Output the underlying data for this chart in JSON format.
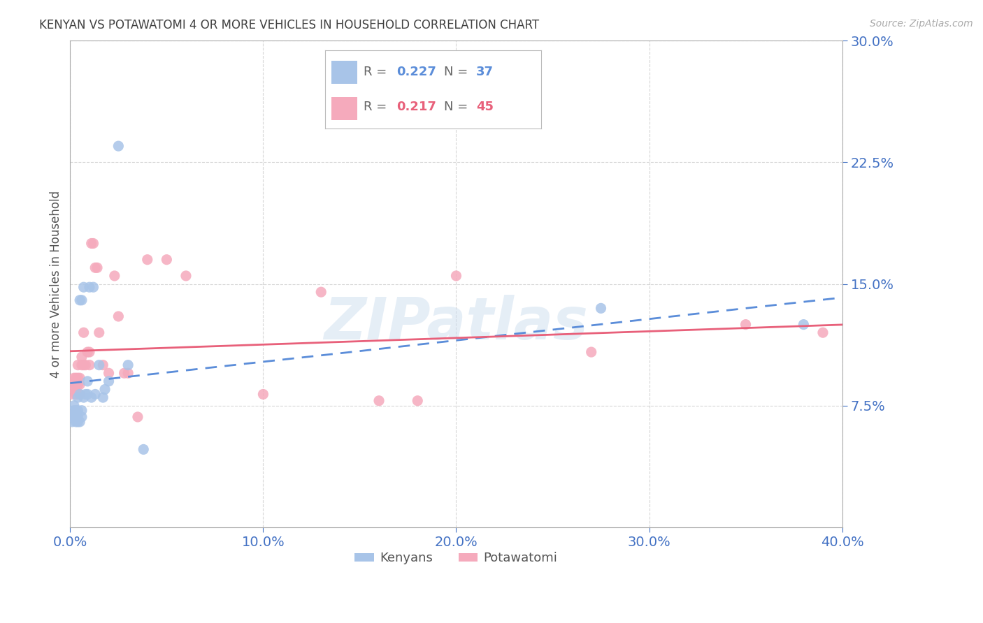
{
  "title": "KENYAN VS POTAWATOMI 4 OR MORE VEHICLES IN HOUSEHOLD CORRELATION CHART",
  "source": "Source: ZipAtlas.com",
  "ylabel": "4 or more Vehicles in Household",
  "xlim": [
    0.0,
    0.4
  ],
  "ylim": [
    0.0,
    0.3
  ],
  "yticks": [
    0.075,
    0.15,
    0.225,
    0.3
  ],
  "xticks": [
    0.0,
    0.1,
    0.2,
    0.3,
    0.4
  ],
  "kenyan_color": "#a8c4e8",
  "potawatomi_color": "#f5aabc",
  "kenyan_line_color": "#5b8dd9",
  "potawatomi_line_color": "#e8607a",
  "legend_R_kenyan": "0.227",
  "legend_N_kenyan": "37",
  "legend_R_potawatomi": "0.217",
  "legend_N_potawatomi": "45",
  "watermark": "ZIPatlas",
  "background_color": "#ffffff",
  "grid_color": "#cccccc",
  "axis_label_color": "#4472c4",
  "title_color": "#404040",
  "kenyan_x": [
    0.001,
    0.001,
    0.002,
    0.002,
    0.002,
    0.003,
    0.003,
    0.003,
    0.003,
    0.004,
    0.004,
    0.004,
    0.004,
    0.005,
    0.005,
    0.005,
    0.006,
    0.006,
    0.006,
    0.007,
    0.007,
    0.008,
    0.009,
    0.009,
    0.01,
    0.011,
    0.012,
    0.013,
    0.015,
    0.017,
    0.018,
    0.02,
    0.025,
    0.03,
    0.038,
    0.275,
    0.38
  ],
  "kenyan_y": [
    0.065,
    0.068,
    0.07,
    0.072,
    0.075,
    0.065,
    0.068,
    0.07,
    0.072,
    0.065,
    0.068,
    0.072,
    0.08,
    0.065,
    0.082,
    0.14,
    0.068,
    0.072,
    0.14,
    0.08,
    0.148,
    0.082,
    0.082,
    0.09,
    0.148,
    0.08,
    0.148,
    0.082,
    0.1,
    0.08,
    0.085,
    0.09,
    0.235,
    0.1,
    0.048,
    0.135,
    0.125
  ],
  "potawatomi_x": [
    0.001,
    0.001,
    0.002,
    0.002,
    0.003,
    0.003,
    0.003,
    0.004,
    0.004,
    0.004,
    0.004,
    0.005,
    0.005,
    0.005,
    0.006,
    0.006,
    0.007,
    0.007,
    0.008,
    0.009,
    0.01,
    0.01,
    0.011,
    0.012,
    0.013,
    0.014,
    0.015,
    0.017,
    0.02,
    0.023,
    0.025,
    0.028,
    0.03,
    0.035,
    0.04,
    0.05,
    0.06,
    0.1,
    0.13,
    0.16,
    0.18,
    0.2,
    0.27,
    0.35,
    0.39
  ],
  "potawatomi_y": [
    0.082,
    0.088,
    0.085,
    0.092,
    0.082,
    0.088,
    0.092,
    0.082,
    0.088,
    0.092,
    0.1,
    0.082,
    0.088,
    0.092,
    0.1,
    0.105,
    0.1,
    0.12,
    0.1,
    0.108,
    0.1,
    0.108,
    0.175,
    0.175,
    0.16,
    0.16,
    0.12,
    0.1,
    0.095,
    0.155,
    0.13,
    0.095,
    0.095,
    0.068,
    0.165,
    0.165,
    0.155,
    0.082,
    0.145,
    0.078,
    0.078,
    0.155,
    0.108,
    0.125,
    0.12
  ]
}
